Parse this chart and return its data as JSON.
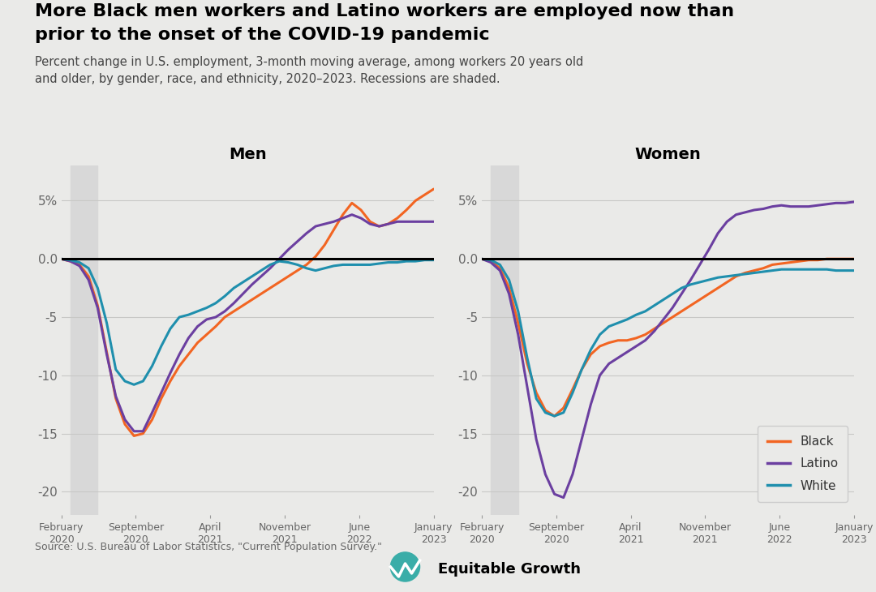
{
  "title_line1": "More Black men workers and Latino workers are employed now than",
  "title_line2": "prior to the onset of the COVID-19 pandemic",
  "subtitle": "Percent change in U.S. employment, 3-month moving average, among workers 20 years old\nand older, by gender, race, and ethnicity, 2020–2023. Recessions are shaded.",
  "source": "Source: U.S. Bureau of Labor Statistics, \"Current Population Survey.\"",
  "panel_titles": [
    "Men",
    "Women"
  ],
  "legend_labels": [
    "Black",
    "Latino",
    "White"
  ],
  "colors": {
    "Black": "#F26522",
    "Latino": "#6B3FA0",
    "White": "#1F8FAD"
  },
  "background_color": "#EAEAE8",
  "recession_color": "#D8D8D8",
  "recession_alpha": 1.0,
  "ylim": [
    -22,
    8
  ],
  "yticks": [
    5,
    0,
    -5,
    -10,
    -15,
    -20
  ],
  "ytick_labels": [
    "5%",
    "0.0",
    "-5",
    "-10",
    "-15",
    "-20"
  ],
  "x_tick_labels": [
    "February\n2020",
    "September\n2020",
    "April\n2021",
    "November\n2021",
    "June\n2022",
    "January\n2023"
  ],
  "men_black": [
    0,
    -0.2,
    -0.5,
    -1.5,
    -4.0,
    -8.0,
    -12.0,
    -14.2,
    -15.2,
    -15.0,
    -13.8,
    -12.0,
    -10.5,
    -9.2,
    -8.2,
    -7.2,
    -6.5,
    -5.8,
    -5.0,
    -4.5,
    -4.0,
    -3.5,
    -3.0,
    -2.5,
    -2.0,
    -1.5,
    -1.0,
    -0.5,
    0.2,
    1.2,
    2.5,
    3.8,
    4.8,
    4.2,
    3.2,
    2.8,
    3.0,
    3.5,
    4.2,
    5.0,
    5.5,
    6.0
  ],
  "men_latino": [
    0,
    -0.2,
    -0.6,
    -1.8,
    -4.2,
    -8.2,
    -11.8,
    -13.8,
    -14.8,
    -14.8,
    -13.2,
    -11.5,
    -9.8,
    -8.2,
    -6.8,
    -5.8,
    -5.2,
    -5.0,
    -4.5,
    -3.8,
    -3.0,
    -2.2,
    -1.5,
    -0.8,
    0.0,
    0.8,
    1.5,
    2.2,
    2.8,
    3.0,
    3.2,
    3.5,
    3.8,
    3.5,
    3.0,
    2.8,
    3.0,
    3.2,
    3.2,
    3.2,
    3.2,
    3.2
  ],
  "men_white": [
    0,
    -0.1,
    -0.3,
    -0.8,
    -2.5,
    -5.5,
    -9.5,
    -10.5,
    -10.8,
    -10.5,
    -9.2,
    -7.5,
    -6.0,
    -5.0,
    -4.8,
    -4.5,
    -4.2,
    -3.8,
    -3.2,
    -2.5,
    -2.0,
    -1.5,
    -1.0,
    -0.5,
    -0.2,
    -0.3,
    -0.5,
    -0.8,
    -1.0,
    -0.8,
    -0.6,
    -0.5,
    -0.5,
    -0.5,
    -0.5,
    -0.4,
    -0.3,
    -0.3,
    -0.2,
    -0.2,
    -0.1,
    -0.1
  ],
  "women_black": [
    0,
    -0.2,
    -0.8,
    -2.5,
    -5.5,
    -9.0,
    -11.5,
    -13.0,
    -13.5,
    -12.8,
    -11.2,
    -9.5,
    -8.2,
    -7.5,
    -7.2,
    -7.0,
    -7.0,
    -6.8,
    -6.5,
    -6.0,
    -5.5,
    -5.0,
    -4.5,
    -4.0,
    -3.5,
    -3.0,
    -2.5,
    -2.0,
    -1.5,
    -1.2,
    -1.0,
    -0.8,
    -0.5,
    -0.4,
    -0.3,
    -0.2,
    -0.1,
    -0.1,
    0.0,
    0.0,
    0.0,
    0.0
  ],
  "women_latino": [
    0,
    -0.3,
    -1.0,
    -3.0,
    -6.5,
    -11.0,
    -15.5,
    -18.5,
    -20.2,
    -20.5,
    -18.5,
    -15.5,
    -12.5,
    -10.0,
    -9.0,
    -8.5,
    -8.0,
    -7.5,
    -7.0,
    -6.2,
    -5.2,
    -4.2,
    -3.0,
    -1.8,
    -0.5,
    0.8,
    2.2,
    3.2,
    3.8,
    4.0,
    4.2,
    4.3,
    4.5,
    4.6,
    4.5,
    4.5,
    4.5,
    4.6,
    4.7,
    4.8,
    4.8,
    4.9
  ],
  "women_white": [
    0,
    -0.1,
    -0.5,
    -1.8,
    -4.5,
    -8.5,
    -12.0,
    -13.2,
    -13.5,
    -13.2,
    -11.5,
    -9.5,
    -7.8,
    -6.5,
    -5.8,
    -5.5,
    -5.2,
    -4.8,
    -4.5,
    -4.0,
    -3.5,
    -3.0,
    -2.5,
    -2.2,
    -2.0,
    -1.8,
    -1.6,
    -1.5,
    -1.4,
    -1.3,
    -1.2,
    -1.1,
    -1.0,
    -0.9,
    -0.9,
    -0.9,
    -0.9,
    -0.9,
    -0.9,
    -1.0,
    -1.0,
    -1.0
  ]
}
